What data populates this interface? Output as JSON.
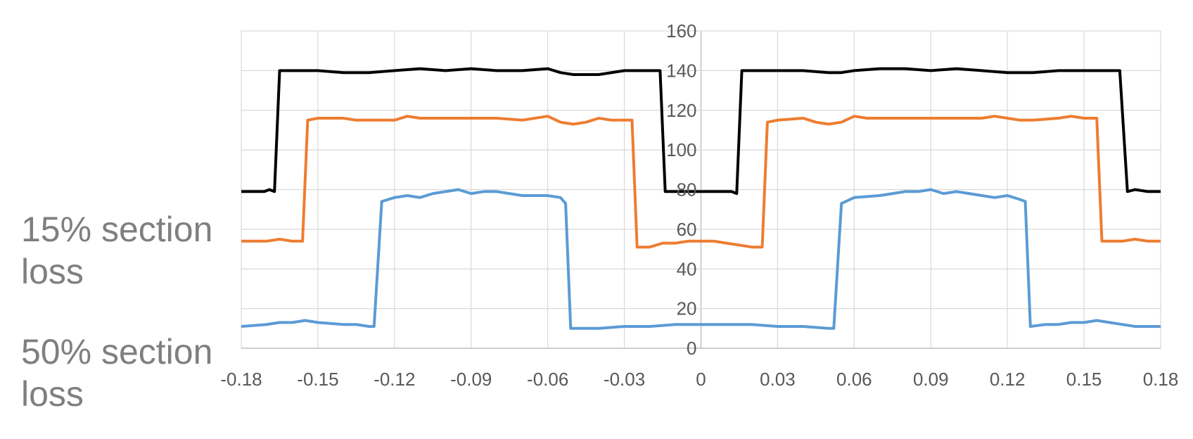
{
  "side_labels": {
    "label_1": "15% section\nloss",
    "label_2": "50% section\nloss"
  },
  "chart_data": {
    "type": "line",
    "title": "",
    "xlabel": "",
    "ylabel": "",
    "xlim": [
      -0.18,
      0.18
    ],
    "ylim": [
      0,
      160
    ],
    "x_ticks": [
      -0.18,
      -0.15,
      -0.12,
      -0.09,
      -0.06,
      -0.03,
      0,
      0.03,
      0.06,
      0.09,
      0.12,
      0.15,
      0.18
    ],
    "x_tick_labels": [
      "-0.18",
      "-0.15",
      "-0.12",
      "-0.09",
      "-0.06",
      "-0.03",
      "0",
      "0.03",
      "0.06",
      "0.09",
      "0.12",
      "0.15",
      "0.18"
    ],
    "y_ticks": [
      0,
      20,
      40,
      60,
      80,
      100,
      120,
      140,
      160
    ],
    "y_tick_labels": [
      "0",
      "20",
      "40",
      "60",
      "80",
      "100",
      "120",
      "140",
      "160"
    ],
    "grid": true,
    "legend": "none",
    "series": [
      {
        "color": "#000000",
        "points": [
          [
            -0.18,
            79
          ],
          [
            -0.171,
            79
          ],
          [
            -0.169,
            80
          ],
          [
            -0.167,
            79
          ],
          [
            -0.165,
            140
          ],
          [
            -0.15,
            140
          ],
          [
            -0.14,
            139
          ],
          [
            -0.13,
            139
          ],
          [
            -0.12,
            140
          ],
          [
            -0.11,
            141
          ],
          [
            -0.1,
            140
          ],
          [
            -0.09,
            141
          ],
          [
            -0.08,
            140
          ],
          [
            -0.07,
            140
          ],
          [
            -0.06,
            141
          ],
          [
            -0.055,
            139
          ],
          [
            -0.05,
            138
          ],
          [
            -0.04,
            138
          ],
          [
            -0.03,
            140
          ],
          [
            -0.02,
            140
          ],
          [
            -0.016,
            140
          ],
          [
            -0.014,
            79
          ],
          [
            0,
            79
          ],
          [
            0.012,
            79
          ],
          [
            0.014,
            78
          ],
          [
            0.016,
            140
          ],
          [
            0.03,
            140
          ],
          [
            0.04,
            140
          ],
          [
            0.05,
            139
          ],
          [
            0.055,
            139
          ],
          [
            0.06,
            140
          ],
          [
            0.07,
            141
          ],
          [
            0.08,
            141
          ],
          [
            0.09,
            140
          ],
          [
            0.1,
            141
          ],
          [
            0.11,
            140
          ],
          [
            0.12,
            139
          ],
          [
            0.13,
            139
          ],
          [
            0.14,
            140
          ],
          [
            0.15,
            140
          ],
          [
            0.164,
            140
          ],
          [
            0.167,
            79
          ],
          [
            0.17,
            80
          ],
          [
            0.175,
            79
          ],
          [
            0.18,
            79
          ]
        ]
      },
      {
        "color": "#ed7d31",
        "points": [
          [
            -0.18,
            54
          ],
          [
            -0.17,
            54
          ],
          [
            -0.165,
            55
          ],
          [
            -0.16,
            54
          ],
          [
            -0.156,
            54
          ],
          [
            -0.154,
            115
          ],
          [
            -0.15,
            116
          ],
          [
            -0.14,
            116
          ],
          [
            -0.135,
            115
          ],
          [
            -0.13,
            115
          ],
          [
            -0.12,
            115
          ],
          [
            -0.115,
            117
          ],
          [
            -0.11,
            116
          ],
          [
            -0.1,
            116
          ],
          [
            -0.09,
            116
          ],
          [
            -0.08,
            116
          ],
          [
            -0.07,
            115
          ],
          [
            -0.06,
            117
          ],
          [
            -0.055,
            114
          ],
          [
            -0.05,
            113
          ],
          [
            -0.045,
            114
          ],
          [
            -0.04,
            116
          ],
          [
            -0.035,
            115
          ],
          [
            -0.03,
            115
          ],
          [
            -0.027,
            115
          ],
          [
            -0.025,
            51
          ],
          [
            -0.02,
            51
          ],
          [
            -0.015,
            53
          ],
          [
            -0.01,
            53
          ],
          [
            -0.005,
            54
          ],
          [
            0,
            54
          ],
          [
            0.005,
            54
          ],
          [
            0.01,
            53
          ],
          [
            0.015,
            52
          ],
          [
            0.02,
            51
          ],
          [
            0.024,
            51
          ],
          [
            0.026,
            114
          ],
          [
            0.03,
            115
          ],
          [
            0.04,
            116
          ],
          [
            0.045,
            114
          ],
          [
            0.05,
            113
          ],
          [
            0.055,
            114
          ],
          [
            0.06,
            117
          ],
          [
            0.065,
            116
          ],
          [
            0.07,
            116
          ],
          [
            0.08,
            116
          ],
          [
            0.09,
            116
          ],
          [
            0.1,
            116
          ],
          [
            0.11,
            116
          ],
          [
            0.115,
            117
          ],
          [
            0.12,
            116
          ],
          [
            0.125,
            115
          ],
          [
            0.13,
            115
          ],
          [
            0.14,
            116
          ],
          [
            0.145,
            117
          ],
          [
            0.15,
            116
          ],
          [
            0.155,
            116
          ],
          [
            0.157,
            54
          ],
          [
            0.165,
            54
          ],
          [
            0.17,
            55
          ],
          [
            0.175,
            54
          ],
          [
            0.18,
            54
          ]
        ]
      },
      {
        "color": "#5b9bd5",
        "points": [
          [
            -0.18,
            11
          ],
          [
            -0.17,
            12
          ],
          [
            -0.165,
            13
          ],
          [
            -0.16,
            13
          ],
          [
            -0.155,
            14
          ],
          [
            -0.15,
            13
          ],
          [
            -0.14,
            12
          ],
          [
            -0.135,
            12
          ],
          [
            -0.13,
            11
          ],
          [
            -0.128,
            11
          ],
          [
            -0.125,
            74
          ],
          [
            -0.12,
            76
          ],
          [
            -0.115,
            77
          ],
          [
            -0.11,
            76
          ],
          [
            -0.105,
            78
          ],
          [
            -0.1,
            79
          ],
          [
            -0.095,
            80
          ],
          [
            -0.09,
            78
          ],
          [
            -0.085,
            79
          ],
          [
            -0.08,
            79
          ],
          [
            -0.075,
            78
          ],
          [
            -0.07,
            77
          ],
          [
            -0.06,
            77
          ],
          [
            -0.055,
            76
          ],
          [
            -0.053,
            73
          ],
          [
            -0.051,
            10
          ],
          [
            -0.04,
            10
          ],
          [
            -0.03,
            11
          ],
          [
            -0.02,
            11
          ],
          [
            -0.01,
            12
          ],
          [
            0,
            12
          ],
          [
            0.01,
            12
          ],
          [
            0.02,
            12
          ],
          [
            0.03,
            11
          ],
          [
            0.04,
            11
          ],
          [
            0.05,
            10
          ],
          [
            0.052,
            10
          ],
          [
            0.055,
            73
          ],
          [
            0.06,
            76
          ],
          [
            0.07,
            77
          ],
          [
            0.08,
            79
          ],
          [
            0.085,
            79
          ],
          [
            0.09,
            80
          ],
          [
            0.095,
            78
          ],
          [
            0.1,
            79
          ],
          [
            0.105,
            78
          ],
          [
            0.11,
            77
          ],
          [
            0.115,
            76
          ],
          [
            0.12,
            77
          ],
          [
            0.125,
            75
          ],
          [
            0.127,
            74
          ],
          [
            0.129,
            11
          ],
          [
            0.135,
            12
          ],
          [
            0.14,
            12
          ],
          [
            0.145,
            13
          ],
          [
            0.15,
            13
          ],
          [
            0.155,
            14
          ],
          [
            0.16,
            13
          ],
          [
            0.165,
            12
          ],
          [
            0.17,
            11
          ],
          [
            0.18,
            11
          ]
        ]
      }
    ]
  }
}
